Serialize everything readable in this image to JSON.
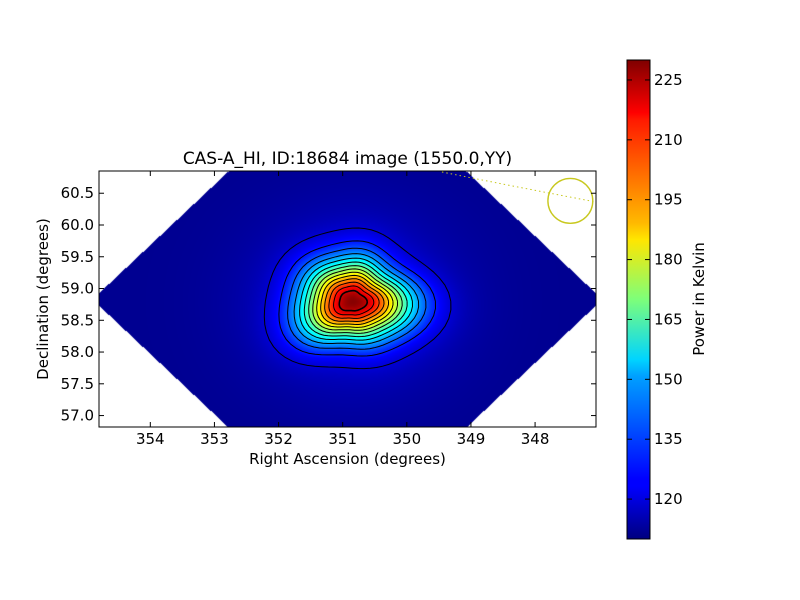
{
  "chart_data": {
    "type": "heatmap",
    "title": "CAS-A_HI, ID:18684 image (1550.0,YY)",
    "xlabel": "Right Ascension (degrees)",
    "ylabel": "Declination (degrees)",
    "xlim": [
      354.8,
      347.05
    ],
    "ylim": [
      56.82,
      60.85
    ],
    "x_ticks": [
      354,
      353,
      352,
      351,
      350,
      349,
      348
    ],
    "x_tick_labels": [
      "354",
      "353",
      "352",
      "351",
      "350",
      "349",
      "348"
    ],
    "y_ticks": [
      57.0,
      57.5,
      58.0,
      58.5,
      59.0,
      59.5,
      60.0,
      60.5
    ],
    "y_tick_labels": [
      "57.0",
      "57.5",
      "58.0",
      "58.5",
      "59.0",
      "59.5",
      "60.0",
      "60.5"
    ],
    "colorbar": {
      "label": "Power in Kelvin",
      "colormap": "jet",
      "vmin": 110,
      "vmax": 230,
      "ticks": [
        120,
        135,
        150,
        165,
        180,
        195,
        210,
        225
      ],
      "tick_labels": [
        "120",
        "135",
        "150",
        "165",
        "180",
        "195",
        "210",
        "225"
      ]
    },
    "source_peak": {
      "ra": 350.85,
      "dec": 58.8,
      "power": 229
    },
    "background_power": 112,
    "contour_count": 14,
    "beam_circle": {
      "ra": 347.45,
      "dec": 60.38,
      "radius_deg": 0.35,
      "color": "#c8c81e"
    },
    "grid": false
  }
}
